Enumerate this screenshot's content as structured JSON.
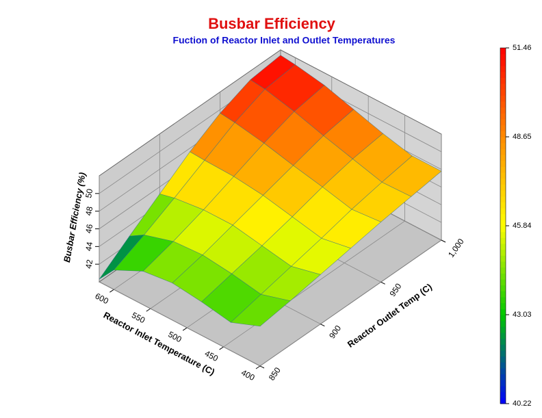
{
  "chart_data": {
    "type": "surface",
    "title": "Busbar Efficiency",
    "subtitle": "Fuction of Reactor Inlet and Outlet Temperatures",
    "x_label": "Reactor Inlet Temperature (C)",
    "y_label": "Reactor Outlet Temp (C)",
    "z_label": "Busbar Efficiency (%)",
    "x": [
      400,
      440,
      480,
      520,
      560,
      600,
      620
    ],
    "y": [
      850,
      875,
      900,
      925,
      950,
      975,
      1000
    ],
    "z": [
      [
        44.5,
        45.0,
        45.6,
        46.2,
        46.8,
        47.3,
        47.8
      ],
      [
        43.2,
        44.0,
        44.8,
        45.6,
        46.5,
        47.2,
        47.8
      ],
      [
        43.8,
        44.6,
        45.4,
        46.3,
        47.3,
        48.1,
        48.6
      ],
      [
        44.2,
        45.0,
        46.0,
        47.0,
        48.0,
        49.0,
        49.6
      ],
      [
        43.8,
        44.8,
        46.0,
        47.4,
        48.8,
        50.0,
        50.6
      ],
      [
        42.2,
        43.8,
        45.6,
        47.5,
        49.4,
        50.8,
        51.2
      ],
      [
        40.3,
        42.8,
        45.2,
        47.6,
        49.6,
        51.0,
        51.4
      ]
    ],
    "xlim": [
      400,
      620
    ],
    "xticks": [
      400,
      450,
      500,
      550,
      600
    ],
    "ylim": [
      850,
      1000
    ],
    "yticks": [
      850,
      900,
      950,
      {
        "value": 1000,
        "label": "1,000"
      }
    ],
    "zlim": [
      40,
      52
    ],
    "zticks": [
      42,
      44,
      46,
      48,
      50
    ],
    "colorscale": [
      "#0000ff",
      "#00c800",
      "#ffff00",
      "#ff8c00",
      "#ff0000"
    ],
    "colorbar": {
      "lim": [
        40.22,
        51.46
      ],
      "ticks": [
        40.22,
        43.03,
        45.84,
        48.65,
        51.46
      ]
    }
  }
}
